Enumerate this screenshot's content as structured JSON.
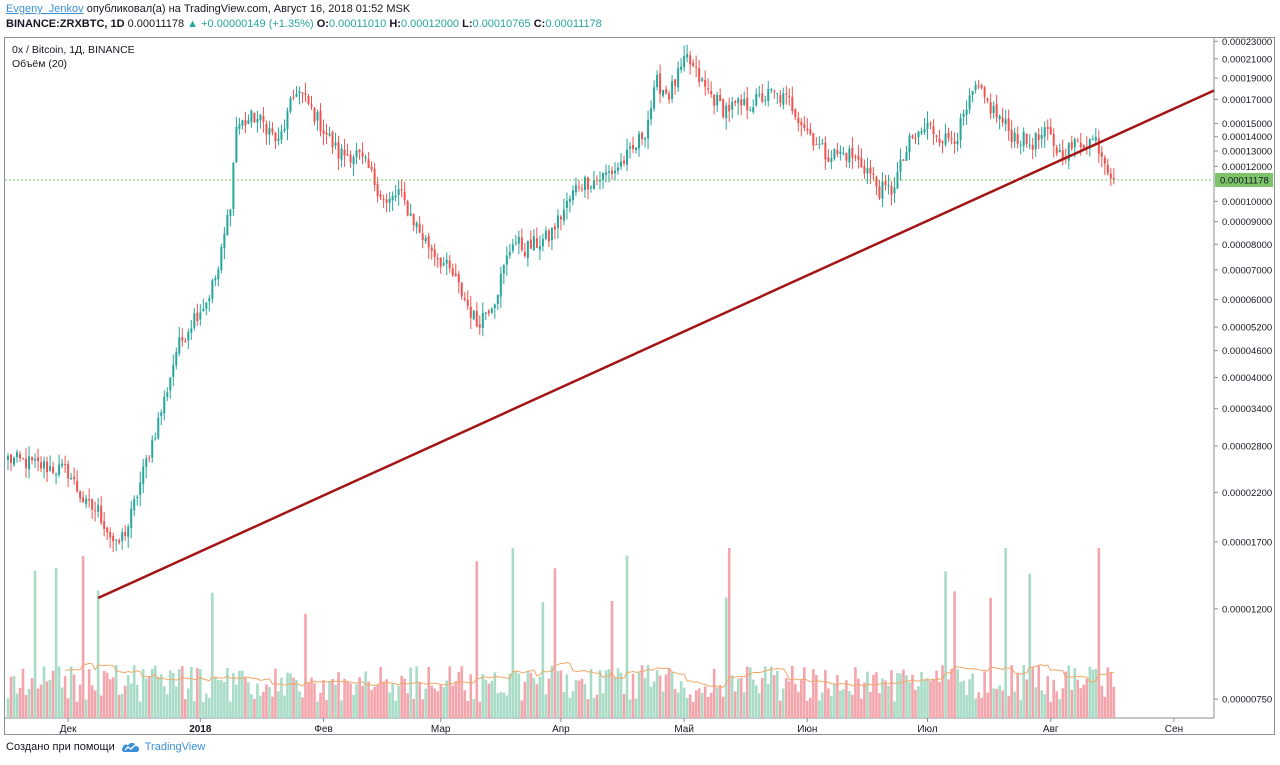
{
  "header": {
    "author": "Evgeny_Jenkov",
    "published_text": "опубликовал(а) на TradingView.com, Август 16, 2018 01:52 MSK",
    "symbol": "BINANCE:ZRXBTC, 1D",
    "last": "0.00011178",
    "change": "▲ +0.00000149 (+1.35%)",
    "o_label": "O:",
    "o_value": "0.00011010",
    "h_label": "H:",
    "h_value": "0.00012000",
    "l_label": "L:",
    "l_value": "0.00010765",
    "c_label": "C:",
    "c_value": "0.00011178"
  },
  "legend": {
    "title": "0x / Bitcoin, 1Д, BINANCE",
    "volume": "Объём (20)"
  },
  "footer": {
    "created_with": "Создано при помощи",
    "brand": "TradingView",
    "brand_icon": "tradingview-cloud-icon"
  },
  "colors": {
    "up": "#26a69a",
    "down": "#ef5350",
    "vol_up": "#a8dcc6",
    "vol_down": "#f4a5ab",
    "vol_ma": "#f0a868",
    "trendline": "#a31515",
    "price_line": "#7cc36a",
    "price_tag_bg": "#7cc36a"
  },
  "chart_data": {
    "type": "candlestick",
    "title": "0x / Bitcoin, 1Д, BINANCE",
    "y_scale": "log",
    "ylim": [
      6.8e-06,
      0.000234
    ],
    "y_ticks": [
      "0.00023000",
      "0.00021000",
      "0.00019000",
      "0.00017000",
      "0.00015000",
      "0.00014000",
      "0.00013000",
      "0.00012000",
      "0.00011178",
      "0.00010000",
      "0.00009000",
      "0.00008000",
      "0.00007000",
      "0.00006000",
      "0.00005200",
      "0.00004600",
      "0.00004000",
      "0.00003400",
      "0.00002800",
      "0.00002200",
      "0.00001700",
      "0.00001200",
      "0.00000750"
    ],
    "x_ticks": [
      "Дек",
      "2018",
      "Фев",
      "Мар",
      "Апр",
      "Май",
      "Июн",
      "Июл",
      "Авг",
      "Сен"
    ],
    "last_price": 0.00011178,
    "price_anchors": [
      [
        0,
        2.62e-05
      ],
      [
        12,
        2.52e-05
      ],
      [
        20,
        2.45e-05
      ],
      [
        26,
        2.05e-05
      ],
      [
        30,
        2e-05
      ],
      [
        36,
        1.65e-05
      ],
      [
        40,
        1.85e-05
      ],
      [
        46,
        2.58e-05
      ],
      [
        52,
        3.55e-05
      ],
      [
        56,
        4.6e-05
      ],
      [
        62,
        5.5e-05
      ],
      [
        66,
        5.95e-05
      ],
      [
        70,
        7e-05
      ],
      [
        74,
        0.0001
      ],
      [
        76,
        0.000148
      ],
      [
        82,
        0.000155
      ],
      [
        86,
        0.000148
      ],
      [
        90,
        0.000135
      ],
      [
        96,
        0.00018
      ],
      [
        100,
        0.000165
      ],
      [
        106,
        0.000142
      ],
      [
        110,
        0.000128
      ],
      [
        116,
        0.000128
      ],
      [
        120,
        0.000118
      ],
      [
        126,
        9.8e-05
      ],
      [
        130,
        0.000105
      ],
      [
        138,
        8.3e-05
      ],
      [
        148,
        6.8e-05
      ],
      [
        156,
        5.3e-05
      ],
      [
        162,
        6.05e-05
      ],
      [
        168,
        8.2e-05
      ],
      [
        172,
        7.8e-05
      ],
      [
        180,
        8.3e-05
      ],
      [
        190,
        0.00011
      ],
      [
        196,
        0.000112
      ],
      [
        202,
        0.000118
      ],
      [
        208,
        0.00013
      ],
      [
        212,
        0.000145
      ],
      [
        216,
        0.000185
      ],
      [
        220,
        0.000175
      ],
      [
        226,
        0.00021
      ],
      [
        232,
        0.00018
      ],
      [
        238,
        0.000162
      ],
      [
        246,
        0.000165
      ],
      [
        254,
        0.000175
      ],
      [
        260,
        0.000168
      ],
      [
        266,
        0.000145
      ],
      [
        272,
        0.000128
      ],
      [
        280,
        0.000128
      ],
      [
        286,
        0.000118
      ],
      [
        290,
        0.000106
      ],
      [
        294,
        0.000106
      ],
      [
        300,
        0.000135
      ],
      [
        306,
        0.000148
      ],
      [
        312,
        0.000138
      ],
      [
        316,
        0.000142
      ],
      [
        322,
        0.00018
      ],
      [
        328,
        0.00016
      ],
      [
        334,
        0.000142
      ],
      [
        340,
        0.000135
      ],
      [
        346,
        0.000142
      ],
      [
        350,
        0.000128
      ],
      [
        356,
        0.000135
      ],
      [
        362,
        0.000138
      ],
      [
        366,
        0.00012
      ],
      [
        368,
        0.000112
      ]
    ],
    "volume_ma_period": 20,
    "trendline": {
      "start_bar": 30,
      "start_price": 1.27e-05,
      "end_bar": 368,
      "end_price": 0.0001405
    }
  }
}
